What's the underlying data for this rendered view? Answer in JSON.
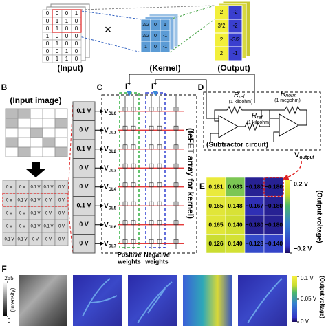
{
  "panel_a": {
    "input_matrix": [
      [
        "0",
        "0",
        "0",
        "1"
      ],
      [
        "0",
        "1",
        "1",
        "0"
      ],
      [
        "0",
        "1",
        "0",
        "0"
      ],
      [
        "1",
        "0",
        "0",
        "0"
      ],
      [
        "0",
        "1",
        "0",
        "0"
      ],
      [
        "0",
        "0",
        "1",
        "0"
      ],
      [
        "0",
        "1",
        "1",
        "0"
      ]
    ],
    "operator": "×",
    "kernel": [
      [
        "3/2",
        "0",
        "1"
      ],
      [
        "3/2",
        "0",
        "-1"
      ],
      [
        "1",
        "0",
        "-1"
      ]
    ],
    "output": [
      [
        "2",
        "-2"
      ],
      [
        "3/2",
        "-2"
      ],
      [
        "2",
        "-3/2"
      ],
      [
        "2",
        "-1"
      ]
    ],
    "input_label": "(Input)",
    "kernel_label": "(Kernel)",
    "output_label": "(Output)"
  },
  "panel_b": {
    "label": "B",
    "title": "(Input image)",
    "voltage_table": [
      [
        "0 V",
        "0 V",
        "0.1 V",
        "0.1 V",
        "0 V"
      ],
      [
        "0 V",
        "0.1 V",
        "0.1 V",
        "0 V",
        "0 V"
      ],
      [
        "0 V",
        "0 V",
        "0.1 V",
        "0 V",
        "0 V"
      ],
      [
        "0 V",
        "0 V",
        "0.1 V",
        "0.1 V",
        "0 V"
      ],
      [
        "0.1 V",
        "0.1 V",
        "0 V",
        "0 V",
        "0 V"
      ]
    ],
    "voltage_vector": [
      "0.1 V",
      "0 V",
      "0.1 V",
      "0 V",
      "0 V",
      "0.1 V",
      "0 V",
      "0 V"
    ]
  },
  "panel_c": {
    "label": "C",
    "title": "(feFET array for kernel)",
    "row_labels": [
      {
        "base": "V",
        "sub": "DL0"
      },
      {
        "base": "V",
        "sub": "DL1"
      },
      {
        "base": "V",
        "sub": "DL2"
      },
      {
        "base": "V",
        "sub": "DL3"
      },
      {
        "base": "V",
        "sub": "DL4"
      },
      {
        "base": "V",
        "sub": "DL5"
      },
      {
        "base": "V",
        "sub": "DL6"
      },
      {
        "base": "V",
        "sub": "DL7"
      }
    ],
    "currents": [
      {
        "base": "I",
        "sup": "+"
      },
      {
        "base": "I",
        "sup": "−"
      }
    ],
    "positive_weights": [
      "Positive",
      "weights"
    ],
    "negative_weights": [
      "Negative",
      "weights"
    ]
  },
  "panel_d": {
    "label": "D",
    "resistors": [
      {
        "base": "R",
        "sub": "ref",
        "value": "(1 kiloohm)"
      },
      {
        "base": "R",
        "sub": "ref",
        "value": "(1 kiloohm)"
      },
      {
        "base": "R",
        "sub": "norm",
        "value": "(1 megohm)"
      }
    ],
    "title": "(Subtractor circuit)",
    "output": {
      "base": "V",
      "sub": "output"
    }
  },
  "panel_e": {
    "label": "E",
    "values": [
      [
        "0.181",
        "0.083",
        "−0.180",
        "−0.180"
      ],
      [
        "0.165",
        "0.148",
        "−0.167",
        "−0.180"
      ],
      [
        "0.165",
        "0.140",
        "−0.180",
        "−0.180"
      ],
      [
        "0.126",
        "0.140",
        "−0.128",
        "−0.140"
      ]
    ],
    "colorbar": {
      "range": [
        -0.2,
        0.2
      ],
      "ticks": [
        {
          "value": 0.2,
          "label": "0.2 V"
        },
        {
          "value": -0.2,
          "label": "−0.2 V"
        }
      ],
      "label": "(Output voltage)"
    }
  },
  "panel_f": {
    "label": "F",
    "intensity_bar": {
      "range": [
        0,
        255
      ],
      "ticks": [
        255,
        0
      ],
      "label": "(Intensity)"
    },
    "voltage_bar": {
      "range": [
        0,
        0.1
      ],
      "ticks": [
        {
          "value": 0.1,
          "label": "0.1 V"
        },
        {
          "value": 0.05,
          "label": "0.05 V"
        },
        {
          "value": 0,
          "label": "0 V"
        }
      ],
      "label": "(Output voltage)"
    }
  }
}
